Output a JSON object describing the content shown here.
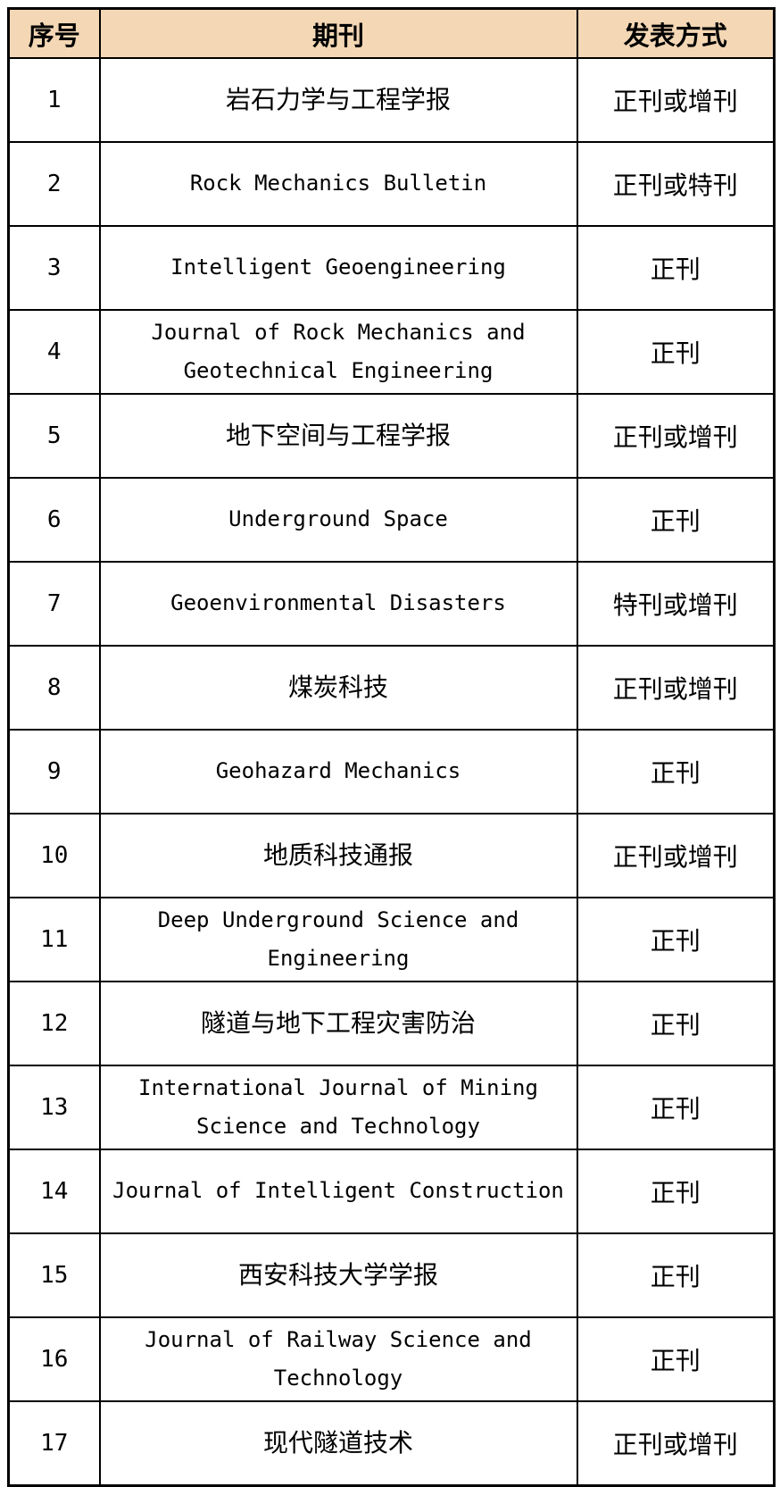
{
  "table": {
    "title_semantic": "journal-publication-method-table",
    "colors": {
      "header_background": "#F4D7B5",
      "border": "#000000",
      "text": "#000000",
      "page_background": "#FFFFFF"
    },
    "header": {
      "columns": [
        "序号",
        "期刊",
        "发表方式"
      ]
    },
    "rows": [
      {
        "no": "1",
        "journal": "岩石力学与工程学报",
        "method": "正刊或增刊"
      },
      {
        "no": "2",
        "journal": "Rock Mechanics Bulletin",
        "method": "正刊或特刊"
      },
      {
        "no": "3",
        "journal": "Intelligent Geoengineering",
        "method": "正刊"
      },
      {
        "no": "4",
        "journal": "Journal of Rock Mechanics and Geotechnical Engineering",
        "method": "正刊"
      },
      {
        "no": "5",
        "journal": "地下空间与工程学报",
        "method": "正刊或增刊"
      },
      {
        "no": "6",
        "journal": "Underground Space",
        "method": "正刊"
      },
      {
        "no": "7",
        "journal": "Geoenvironmental Disasters",
        "method": "特刊或增刊"
      },
      {
        "no": "8",
        "journal": "煤炭科技",
        "method": "正刊或增刊"
      },
      {
        "no": "9",
        "journal": "Geohazard Mechanics",
        "method": "正刊"
      },
      {
        "no": "10",
        "journal": "地质科技通报",
        "method": "正刊或增刊"
      },
      {
        "no": "11",
        "journal": "Deep Underground Science and Engineering",
        "method": "正刊"
      },
      {
        "no": "12",
        "journal": "隧道与地下工程灾害防治",
        "method": "正刊"
      },
      {
        "no": "13",
        "journal": "International Journal of Mining Science and Technology",
        "method": "正刊"
      },
      {
        "no": "14",
        "journal": "Journal of Intelligent Construction",
        "method": "正刊"
      },
      {
        "no": "15",
        "journal": "西安科技大学学报",
        "method": "正刊"
      },
      {
        "no": "16",
        "journal": "Journal of Railway Science and Technology",
        "method": "正刊"
      },
      {
        "no": "17",
        "journal": "现代隧道技术",
        "method": "正刊或增刊"
      }
    ]
  }
}
